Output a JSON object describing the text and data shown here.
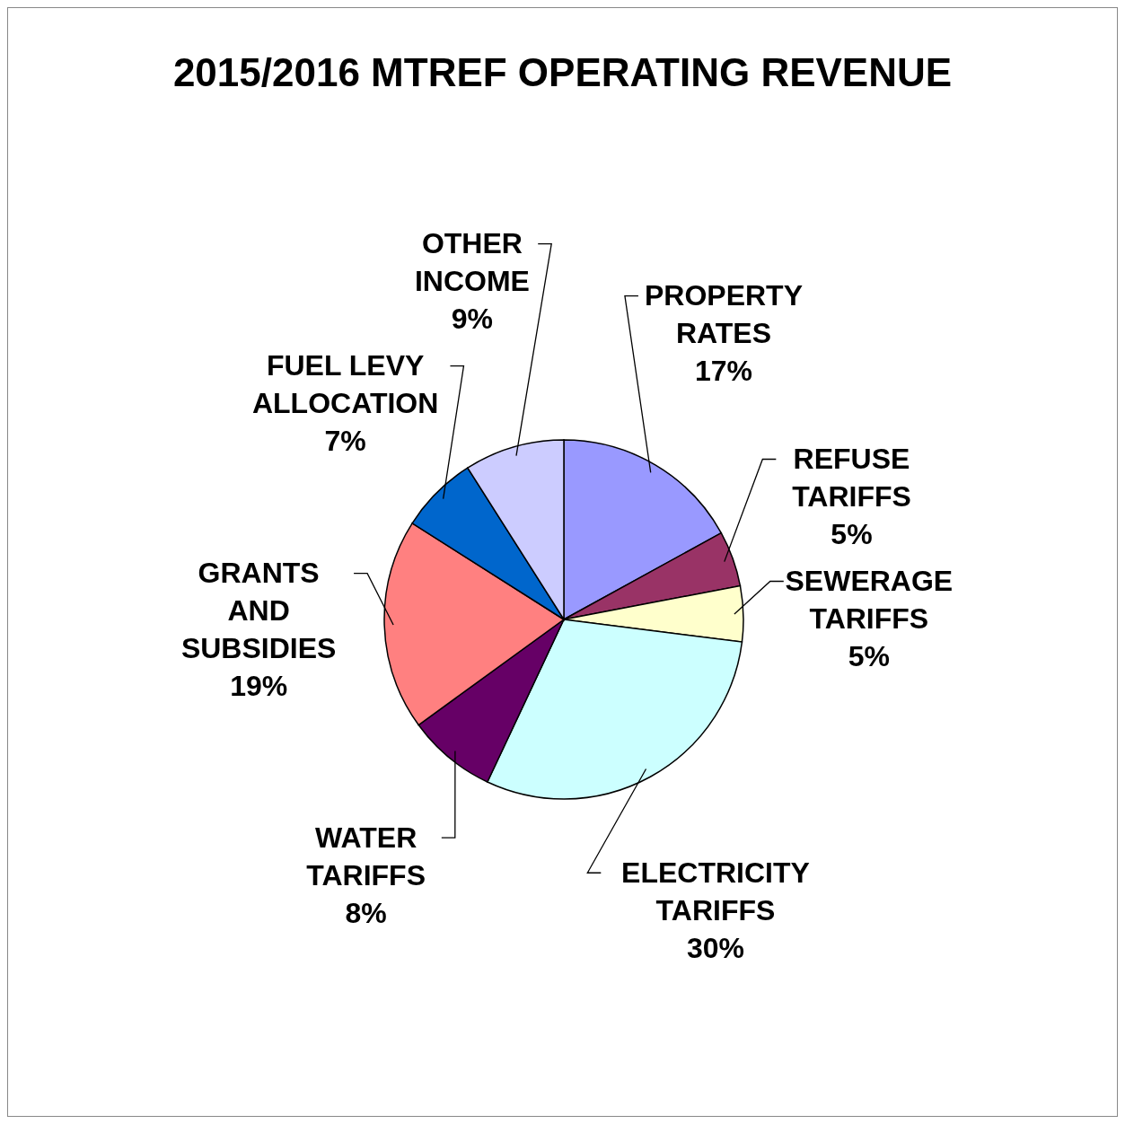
{
  "chart_data": {
    "type": "pie",
    "title": "2015/2016 MTREF OPERATING REVENUE",
    "categories": [
      "PROPERTY RATES",
      "REFUSE TARIFFS",
      "SEWERAGE TARIFFS",
      "ELECTRICITY TARIFFS",
      "WATER TARIFFS",
      "GRANTS AND SUBSIDIES",
      "FUEL LEVY ALLOCATION",
      "OTHER INCOME"
    ],
    "values": [
      17,
      5,
      5,
      30,
      8,
      19,
      7,
      9
    ],
    "value_labels": [
      "17%",
      "5%",
      "5%",
      "30%",
      "8%",
      "19%",
      "7%",
      "9%"
    ],
    "colors": [
      "#9999ff",
      "#993366",
      "#ffffcc",
      "#ccffff",
      "#660066",
      "#ff8080",
      "#0066cc",
      "#ccccff"
    ]
  }
}
